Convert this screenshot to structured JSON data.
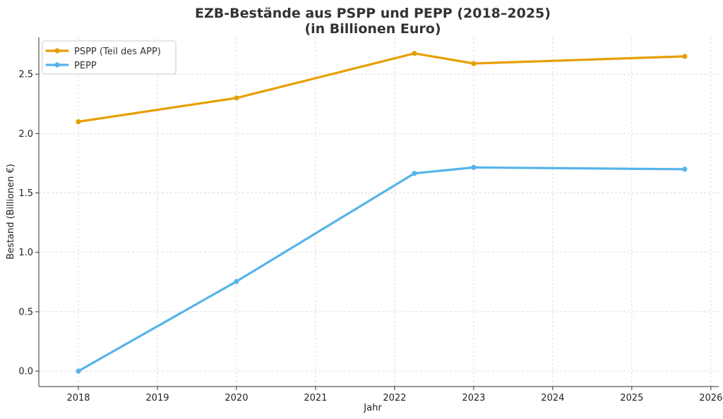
{
  "chart_data": {
    "type": "line",
    "title": "EZB-Bestände aus PSPP und PEPP (2018–2025)",
    "subtitle": "(in Billionen Euro)",
    "xlabel": "Jahr",
    "ylabel": "Bestand (Billionen €)",
    "xlim": [
      2017.5,
      2026.1
    ],
    "ylim": [
      -0.13,
      2.81
    ],
    "x_ticks": [
      2018,
      2019,
      2020,
      2021,
      2022,
      2023,
      2024,
      2025,
      2026
    ],
    "x_tick_labels": [
      "2018",
      "2019",
      "2020",
      "2021",
      "2022",
      "2023",
      "2024",
      "2025",
      "2026"
    ],
    "y_ticks": [
      0.0,
      0.5,
      1.0,
      1.5,
      2.0,
      2.5
    ],
    "y_tick_labels": [
      "0.0",
      "0.5",
      "1.0",
      "1.5",
      "2.0",
      "2.5"
    ],
    "grid": true,
    "legend_position": "top-left",
    "series": [
      {
        "name": "PSPP (Teil des APP)",
        "color": "#E69F00",
        "x": [
          2018.0,
          2020.0,
          2022.25,
          2023.0,
          2025.67
        ],
        "y": [
          2.1,
          2.3,
          2.675,
          2.59,
          2.65
        ]
      },
      {
        "name": "PEPP",
        "color": "#56B4E9",
        "x": [
          2018.0,
          2020.0,
          2022.25,
          2023.0,
          2025.67
        ],
        "y": [
          0.0,
          0.755,
          1.665,
          1.715,
          1.7
        ]
      }
    ]
  }
}
